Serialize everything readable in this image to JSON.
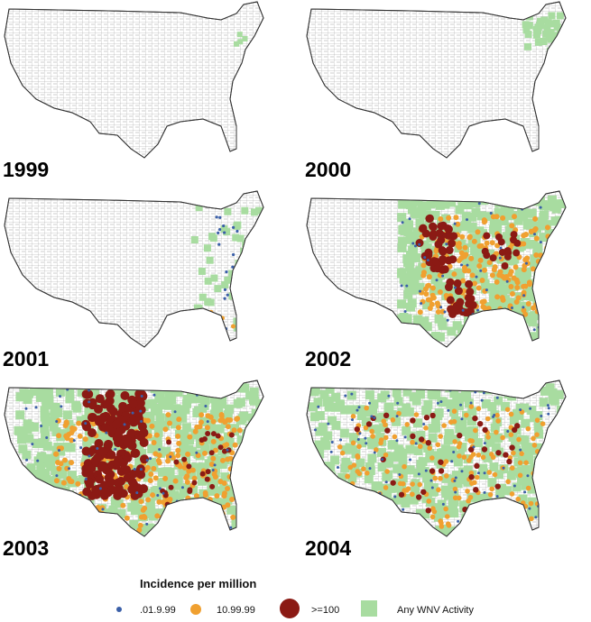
{
  "panels": [
    {
      "year": "1999"
    },
    {
      "year": "2000"
    },
    {
      "year": "2001"
    },
    {
      "year": "2002"
    },
    {
      "year": "2003"
    },
    {
      "year": "2004"
    }
  ],
  "legend": {
    "title": "Incidence per million",
    "items": [
      ".01.9.99",
      "10.99.99",
      ">=100",
      "Any WNV Activity"
    ]
  }
}
